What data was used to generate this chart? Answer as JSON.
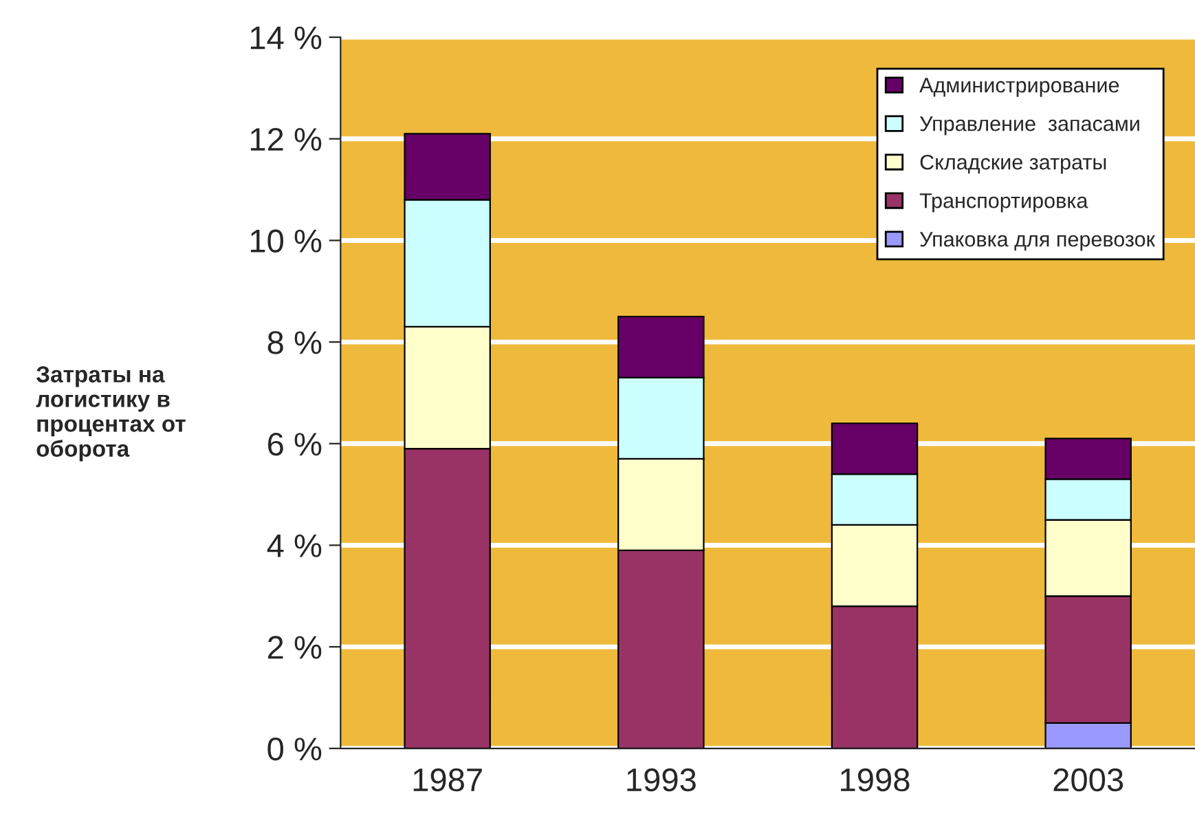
{
  "chart_data": {
    "type": "bar",
    "stacked": true,
    "ylabel": "Затраты на логистику в процентах от оборота",
    "categories": [
      "1987",
      "1993",
      "1998",
      "2003"
    ],
    "series": [
      {
        "name": "Упаковка для перевозок",
        "color": "#9999ff",
        "values": [
          null,
          null,
          null,
          0.5
        ]
      },
      {
        "name": "Транспортировка",
        "color": "#993366",
        "values": [
          5.9,
          3.9,
          2.8,
          2.5
        ]
      },
      {
        "name": "Складские затраты",
        "color": "#ffffcc",
        "values": [
          2.4,
          1.8,
          1.6,
          1.5
        ]
      },
      {
        "name": "Управление  запасами",
        "color": "#ccffff",
        "values": [
          2.5,
          1.6,
          1.0,
          0.8
        ]
      },
      {
        "name": "Администрирование",
        "color": "#660066",
        "values": [
          1.3,
          1.2,
          1.0,
          0.8
        ]
      }
    ],
    "ylim": [
      0,
      14
    ],
    "yticks": [
      {
        "value": 0,
        "label": "0 %"
      },
      {
        "value": 2,
        "label": "2 %"
      },
      {
        "value": 4,
        "label": "4 %"
      },
      {
        "value": 6,
        "label": "6 %"
      },
      {
        "value": 8,
        "label": "8 %"
      },
      {
        "value": 10,
        "label": "10 %"
      },
      {
        "value": 12,
        "label": "12 %"
      },
      {
        "value": 14,
        "label": "14 %"
      }
    ],
    "grid": "y",
    "legend": "top right"
  }
}
